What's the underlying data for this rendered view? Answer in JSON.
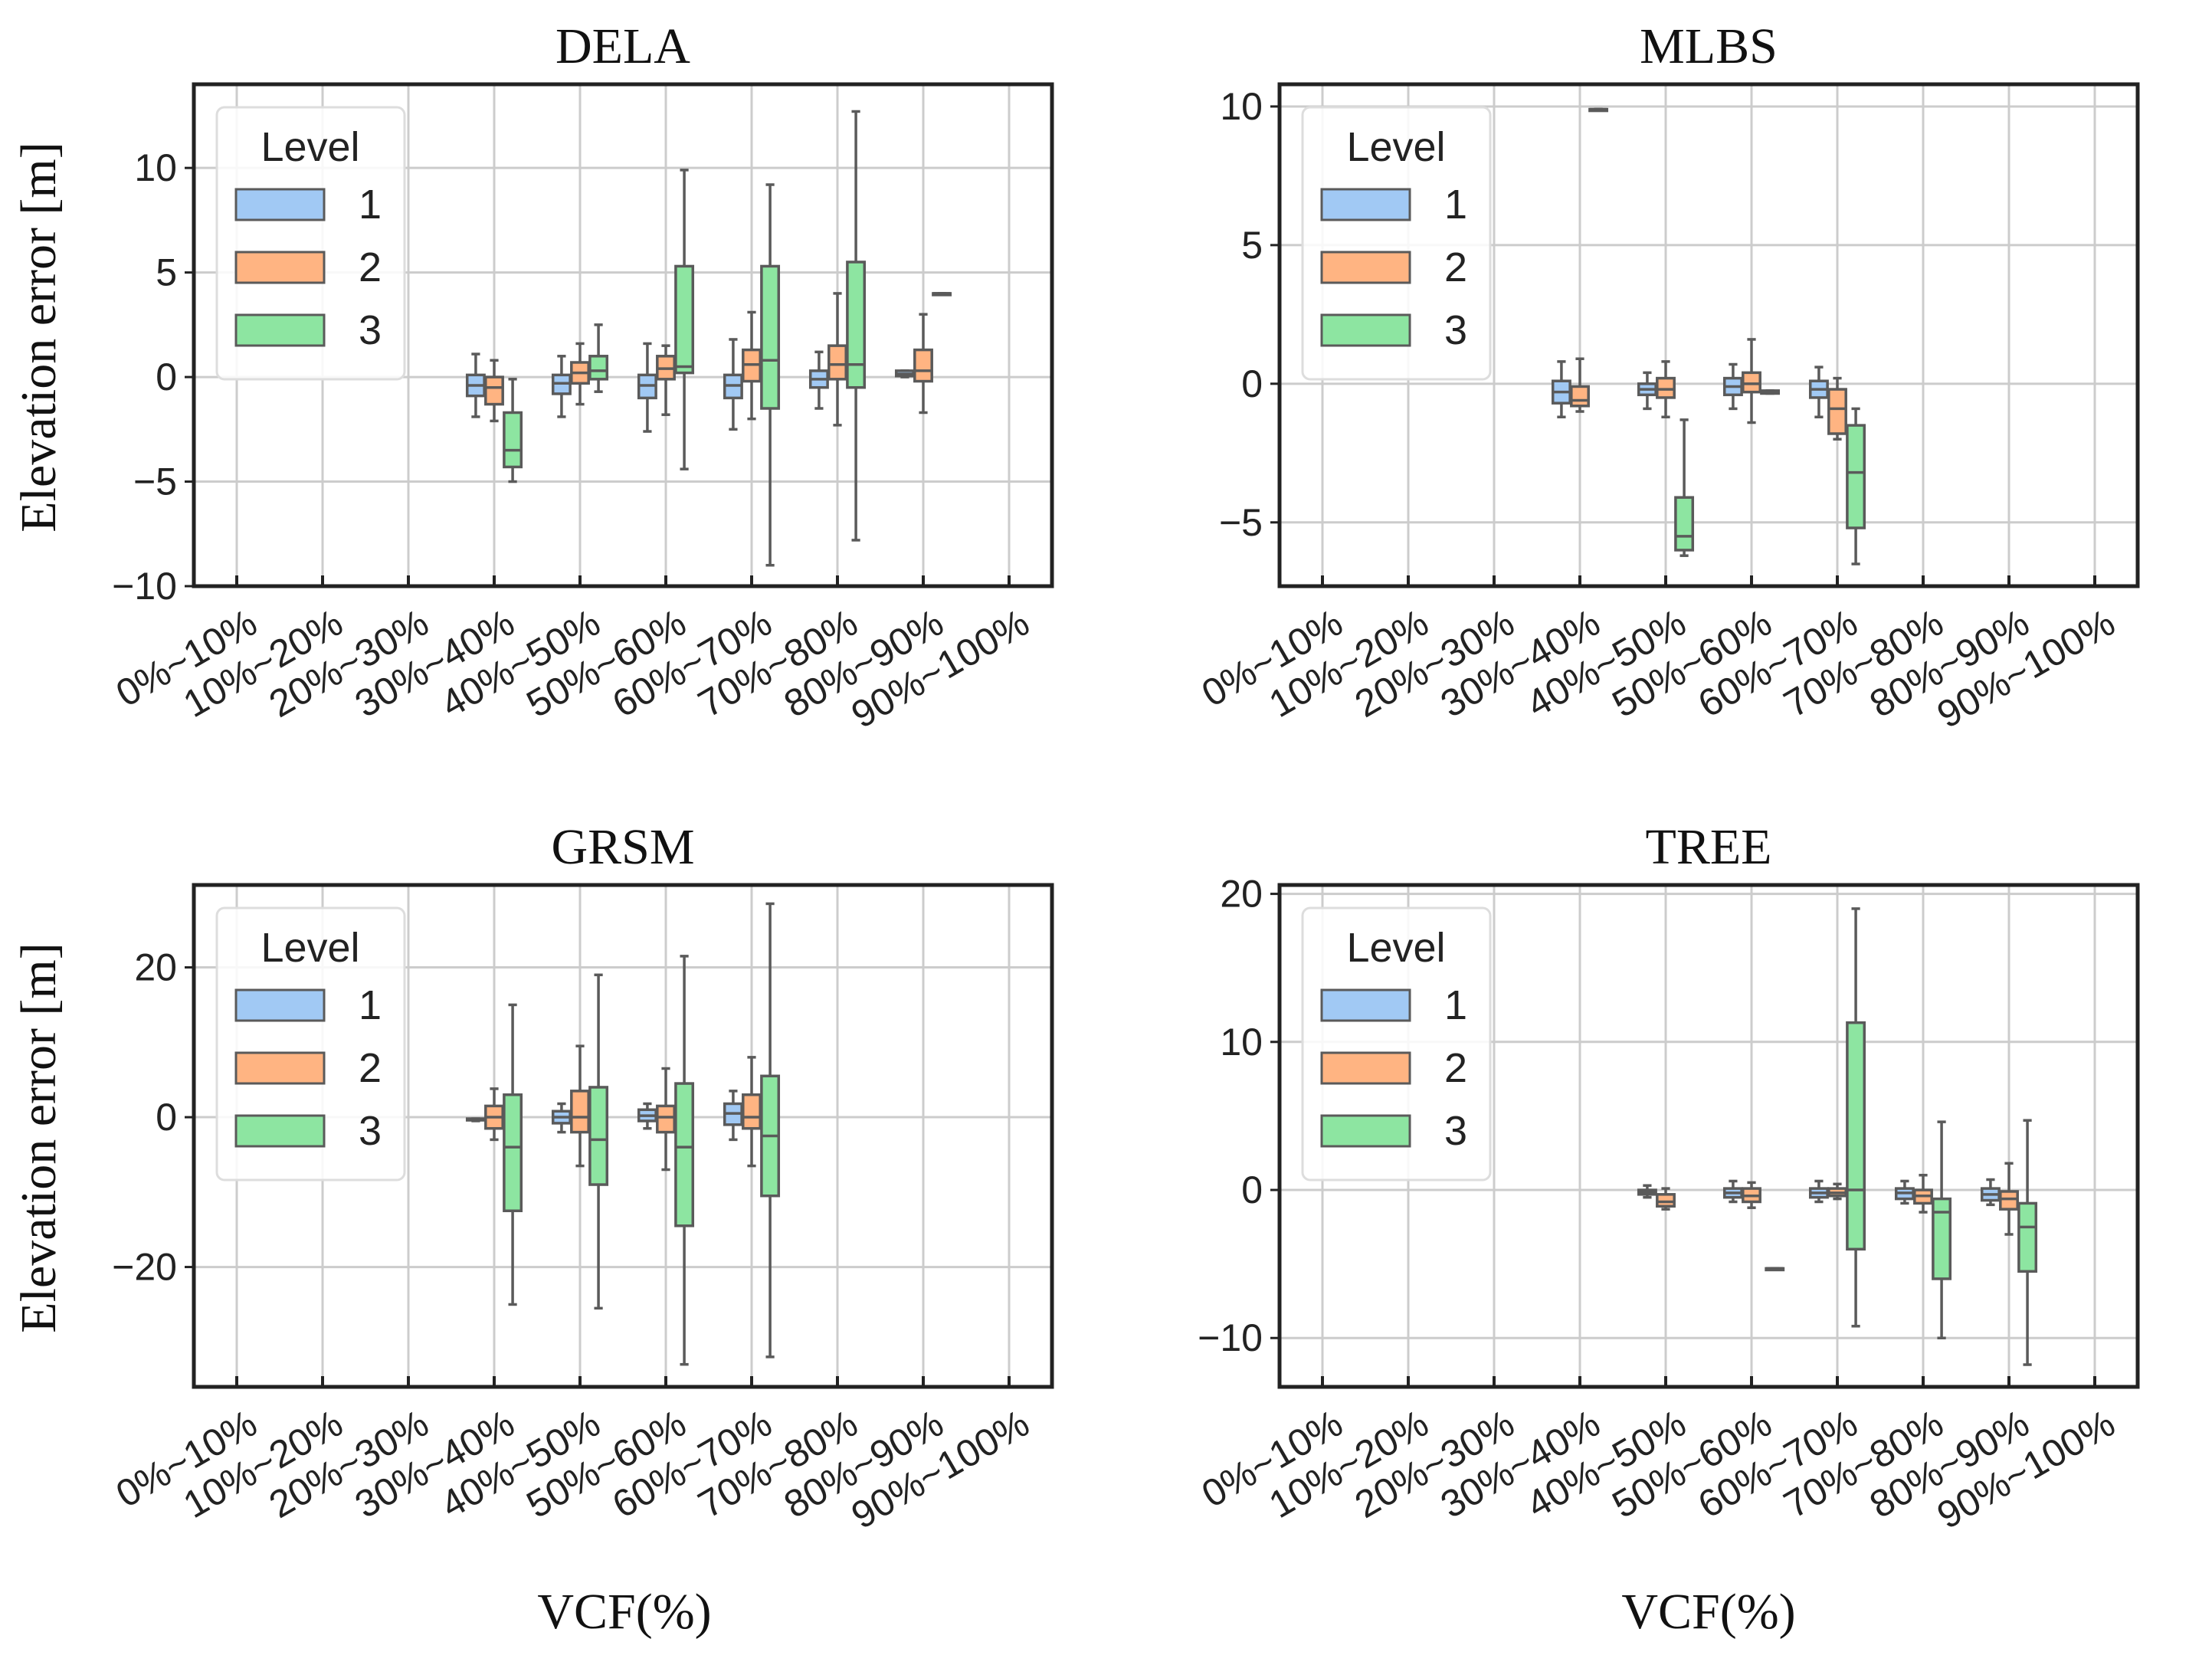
{
  "figure": {
    "xlabel": "VCF(%)",
    "ylabel": "Elevation error [m]"
  },
  "legend": {
    "title": "Level",
    "labels": [
      "1",
      "2",
      "3"
    ]
  },
  "colors": {
    "level1": "#a1c9f4",
    "level2": "#ffb482",
    "level3": "#8de5a1",
    "edge": "#5a5a5a",
    "grid": "#cccccc",
    "frame": "#222222"
  },
  "chart_data": [
    {
      "type": "box",
      "title": "DELA",
      "xlabel": "VCF(%)",
      "ylabel": "Elevation error [m]",
      "categories": [
        "0%~10%",
        "10%~20%",
        "20%~30%",
        "30%~40%",
        "40%~50%",
        "50%~60%",
        "60%~70%",
        "70%~80%",
        "80%~90%",
        "90%~100%"
      ],
      "ylim": [
        -10,
        14
      ],
      "yticks": [
        -10,
        -5,
        0,
        5,
        10
      ],
      "ytick_labels": [
        "−10",
        "−5",
        "0",
        "5",
        "10"
      ],
      "legend_position": "top-left",
      "series": [
        {
          "name": "1",
          "boxes": [
            {
              "cat": 3,
              "min": -1.9,
              "q1": -0.9,
              "med": -0.4,
              "q3": 0.1,
              "max": 1.1
            },
            {
              "cat": 4,
              "min": -1.9,
              "q1": -0.8,
              "med": -0.3,
              "q3": 0.1,
              "max": 1.0
            },
            {
              "cat": 5,
              "min": -2.6,
              "q1": -1.0,
              "med": -0.4,
              "q3": 0.1,
              "max": 1.6
            },
            {
              "cat": 6,
              "min": -2.5,
              "q1": -1.0,
              "med": -0.4,
              "q3": 0.1,
              "max": 1.8
            },
            {
              "cat": 7,
              "min": -1.5,
              "q1": -0.5,
              "med": -0.1,
              "q3": 0.3,
              "max": 1.2
            },
            {
              "cat": 8,
              "min": 0.0,
              "q1": 0.05,
              "med": 0.15,
              "q3": 0.3,
              "max": 0.3
            }
          ]
        },
        {
          "name": "2",
          "boxes": [
            {
              "cat": 3,
              "min": -2.1,
              "q1": -1.3,
              "med": -0.5,
              "q3": 0.0,
              "max": 0.8
            },
            {
              "cat": 4,
              "min": -1.3,
              "q1": -0.3,
              "med": 0.2,
              "q3": 0.7,
              "max": 1.6
            },
            {
              "cat": 5,
              "min": -1.8,
              "q1": -0.1,
              "med": 0.4,
              "q3": 1.0,
              "max": 1.5
            },
            {
              "cat": 6,
              "min": -2.0,
              "q1": -0.2,
              "med": 0.6,
              "q3": 1.3,
              "max": 3.1
            },
            {
              "cat": 7,
              "min": -2.3,
              "q1": -0.1,
              "med": 0.6,
              "q3": 1.5,
              "max": 4.0
            },
            {
              "cat": 8,
              "min": -1.7,
              "q1": -0.2,
              "med": 0.3,
              "q3": 1.3,
              "max": 3.0
            }
          ]
        },
        {
          "name": "3",
          "boxes": [
            {
              "cat": 3,
              "min": -5.0,
              "q1": -4.3,
              "med": -3.5,
              "q3": -1.7,
              "max": -0.1
            },
            {
              "cat": 4,
              "min": -0.7,
              "q1": -0.1,
              "med": 0.3,
              "q3": 1.0,
              "max": 2.5
            },
            {
              "cat": 5,
              "min": -4.4,
              "q1": 0.2,
              "med": 0.5,
              "q3": 5.3,
              "max": 9.9
            },
            {
              "cat": 6,
              "min": -9.0,
              "q1": -1.5,
              "med": 0.8,
              "q3": 5.3,
              "max": 9.2
            },
            {
              "cat": 7,
              "min": -7.8,
              "q1": -0.5,
              "med": 0.6,
              "q3": 5.5,
              "max": 12.7
            },
            {
              "cat": 8,
              "min": 4.0,
              "q1": 4.0,
              "med": 4.0,
              "q3": 4.0,
              "max": 4.0
            }
          ]
        }
      ]
    },
    {
      "type": "box",
      "title": "MLBS",
      "xlabel": "",
      "ylabel": "",
      "categories": [
        "0%~10%",
        "10%~20%",
        "20%~30%",
        "30%~40%",
        "40%~50%",
        "50%~60%",
        "60%~70%",
        "70%~80%",
        "80%~90%",
        "90%~100%"
      ],
      "ylim": [
        -7.3,
        10.8
      ],
      "yticks": [
        -5,
        0,
        5,
        10
      ],
      "ytick_labels": [
        "−5",
        "0",
        "5",
        "10"
      ],
      "legend_position": "top-left",
      "series": [
        {
          "name": "1",
          "boxes": [
            {
              "cat": 3,
              "min": -1.2,
              "q1": -0.7,
              "med": -0.3,
              "q3": 0.1,
              "max": 0.8
            },
            {
              "cat": 4,
              "min": -0.9,
              "q1": -0.4,
              "med": -0.2,
              "q3": 0.0,
              "max": 0.4
            },
            {
              "cat": 5,
              "min": -0.9,
              "q1": -0.4,
              "med": -0.1,
              "q3": 0.2,
              "max": 0.7
            },
            {
              "cat": 6,
              "min": -1.2,
              "q1": -0.5,
              "med": -0.2,
              "q3": 0.1,
              "max": 0.6
            }
          ]
        },
        {
          "name": "2",
          "boxes": [
            {
              "cat": 3,
              "min": -1.0,
              "q1": -0.8,
              "med": -0.6,
              "q3": -0.1,
              "max": 0.9
            },
            {
              "cat": 4,
              "min": -1.2,
              "q1": -0.5,
              "med": -0.2,
              "q3": 0.2,
              "max": 0.8
            },
            {
              "cat": 5,
              "min": -1.4,
              "q1": -0.3,
              "med": 0.0,
              "q3": 0.4,
              "max": 1.6
            },
            {
              "cat": 6,
              "min": -2.0,
              "q1": -1.8,
              "med": -0.9,
              "q3": -0.2,
              "max": 0.2
            }
          ]
        },
        {
          "name": "3",
          "boxes": [
            {
              "cat": 3,
              "min": 9.9,
              "q1": 9.9,
              "med": 9.9,
              "q3": 9.9,
              "max": 9.9
            },
            {
              "cat": 4,
              "min": -6.2,
              "q1": -6.0,
              "med": -5.5,
              "q3": -4.1,
              "max": -1.3
            },
            {
              "cat": 5,
              "min": -0.35,
              "q1": -0.35,
              "med": -0.3,
              "q3": -0.25,
              "max": -0.25
            },
            {
              "cat": 6,
              "min": -6.5,
              "q1": -5.2,
              "med": -3.2,
              "q3": -1.5,
              "max": -0.9
            }
          ]
        }
      ]
    },
    {
      "type": "box",
      "title": "GRSM",
      "xlabel": "VCF(%)",
      "ylabel": "Elevation error [m]",
      "categories": [
        "0%~10%",
        "10%~20%",
        "20%~30%",
        "30%~40%",
        "40%~50%",
        "50%~60%",
        "60%~70%",
        "70%~80%",
        "80%~90%",
        "90%~100%"
      ],
      "ylim": [
        -36,
        31
      ],
      "yticks": [
        -20,
        0,
        20
      ],
      "ytick_labels": [
        "−20",
        "0",
        "20"
      ],
      "legend_position": "top-left",
      "series": [
        {
          "name": "1",
          "boxes": [
            {
              "cat": 3,
              "min": -0.5,
              "q1": -0.4,
              "med": -0.3,
              "q3": -0.2,
              "max": -0.2
            },
            {
              "cat": 4,
              "min": -2.0,
              "q1": -0.8,
              "med": 0.0,
              "q3": 0.8,
              "max": 1.8
            },
            {
              "cat": 5,
              "min": -1.5,
              "q1": -0.5,
              "med": 0.2,
              "q3": 1.0,
              "max": 1.8
            },
            {
              "cat": 6,
              "min": -3.0,
              "q1": -1.0,
              "med": 0.5,
              "q3": 1.8,
              "max": 3.5
            }
          ]
        },
        {
          "name": "2",
          "boxes": [
            {
              "cat": 3,
              "min": -3.0,
              "q1": -1.5,
              "med": 0.0,
              "q3": 1.5,
              "max": 3.8
            },
            {
              "cat": 4,
              "min": -6.5,
              "q1": -2.0,
              "med": 0.0,
              "q3": 3.5,
              "max": 9.5
            },
            {
              "cat": 5,
              "min": -7.0,
              "q1": -2.0,
              "med": 0.0,
              "q3": 1.5,
              "max": 6.5
            },
            {
              "cat": 6,
              "min": -6.5,
              "q1": -1.5,
              "med": 0.0,
              "q3": 3.0,
              "max": 8.0
            }
          ]
        },
        {
          "name": "3",
          "boxes": [
            {
              "cat": 3,
              "min": -25.0,
              "q1": -12.5,
              "med": -4.0,
              "q3": 3.0,
              "max": 15.0
            },
            {
              "cat": 4,
              "min": -25.5,
              "q1": -9.0,
              "med": -3.0,
              "q3": 4.0,
              "max": 19.0
            },
            {
              "cat": 5,
              "min": -33.0,
              "q1": -14.5,
              "med": -4.0,
              "q3": 4.5,
              "max": 21.5
            },
            {
              "cat": 6,
              "min": -32.0,
              "q1": -10.5,
              "med": -2.5,
              "q3": 5.5,
              "max": 28.5
            }
          ]
        }
      ]
    },
    {
      "type": "box",
      "title": "TREE",
      "xlabel": "VCF(%)",
      "ylabel": "",
      "categories": [
        "0%~10%",
        "10%~20%",
        "20%~30%",
        "30%~40%",
        "40%~50%",
        "50%~60%",
        "60%~70%",
        "70%~80%",
        "80%~90%",
        "90%~100%"
      ],
      "ylim": [
        -13.3,
        20.6
      ],
      "yticks": [
        -10,
        0,
        10,
        20
      ],
      "ytick_labels": [
        "−10",
        "0",
        "10",
        "20"
      ],
      "legend_position": "top-left",
      "series": [
        {
          "name": "1",
          "boxes": [
            {
              "cat": 4,
              "min": -0.5,
              "q1": -0.3,
              "med": -0.15,
              "q3": 0.0,
              "max": 0.3
            },
            {
              "cat": 5,
              "min": -0.8,
              "q1": -0.5,
              "med": -0.2,
              "q3": 0.1,
              "max": 0.6
            },
            {
              "cat": 6,
              "min": -0.8,
              "q1": -0.5,
              "med": -0.2,
              "q3": 0.1,
              "max": 0.6
            },
            {
              "cat": 7,
              "min": -0.9,
              "q1": -0.6,
              "med": -0.2,
              "q3": 0.1,
              "max": 0.6
            },
            {
              "cat": 8,
              "min": -1.0,
              "q1": -0.7,
              "med": -0.3,
              "q3": 0.1,
              "max": 0.7
            }
          ]
        },
        {
          "name": "2",
          "boxes": [
            {
              "cat": 4,
              "min": -1.3,
              "q1": -1.1,
              "med": -0.8,
              "q3": -0.3,
              "max": 0.1
            },
            {
              "cat": 5,
              "min": -1.2,
              "q1": -0.8,
              "med": -0.4,
              "q3": 0.1,
              "max": 0.5
            },
            {
              "cat": 5,
              "min": -5.3,
              "q1": -5.3,
              "med": -5.3,
              "q3": -5.3,
              "max": -5.3,
              "offset": 0.27
            },
            {
              "cat": 6,
              "min": -0.6,
              "q1": -0.4,
              "med": -0.2,
              "q3": 0.1,
              "max": 0.4
            },
            {
              "cat": 7,
              "min": -1.5,
              "q1": -0.9,
              "med": -0.4,
              "q3": 0.0,
              "max": 1.0
            },
            {
              "cat": 8,
              "min": -3.0,
              "q1": -1.3,
              "med": -0.6,
              "q3": -0.1,
              "max": 1.8
            }
          ]
        },
        {
          "name": "3",
          "boxes": [
            {
              "cat": 6,
              "min": -9.2,
              "q1": -4.0,
              "med": 0.0,
              "q3": 11.3,
              "max": 19.0
            },
            {
              "cat": 7,
              "min": -10.0,
              "q1": -6.0,
              "med": -1.5,
              "q3": -0.6,
              "max": 4.6
            },
            {
              "cat": 8,
              "min": -11.8,
              "q1": -5.5,
              "med": -2.5,
              "q3": -0.9,
              "max": 4.7
            }
          ]
        }
      ]
    }
  ]
}
